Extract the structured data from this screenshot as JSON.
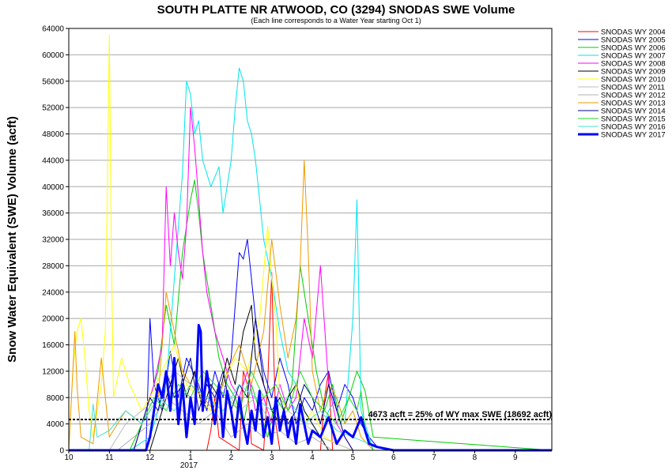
{
  "chart_data": {
    "type": "line",
    "title": "SOUTH PLATTE NR ATWOOD, CO (3294) SNODAS SWE Volume",
    "subtitle": "(Each line corresponds to a Water Year starting Oct 1)",
    "ylabel": "Snow Water Equivalent (SWE) Volume (acft)",
    "xlabel": "",
    "ylim": [
      0,
      64000
    ],
    "xlim": [
      10,
      21.9
    ],
    "yticks": [
      0,
      4000,
      8000,
      12000,
      16000,
      20000,
      24000,
      28000,
      32000,
      36000,
      40000,
      44000,
      48000,
      52000,
      56000,
      60000,
      64000
    ],
    "xticks": [
      {
        "pos": 10,
        "label": "10"
      },
      {
        "pos": 11,
        "label": "11"
      },
      {
        "pos": 12,
        "label": "12"
      },
      {
        "pos": 13,
        "label": "1"
      },
      {
        "pos": 14,
        "label": "2"
      },
      {
        "pos": 15,
        "label": "3"
      },
      {
        "pos": 16,
        "label": "4"
      },
      {
        "pos": 17,
        "label": "5"
      },
      {
        "pos": 18,
        "label": "6"
      },
      {
        "pos": 19,
        "label": "7"
      },
      {
        "pos": 20,
        "label": "8"
      },
      {
        "pos": 21,
        "label": "9"
      }
    ],
    "year_label": "2017",
    "grid": true,
    "legend_position": "right",
    "reference_line": {
      "y": 4673,
      "label": "4673 acft = 25% of WY max SWE (18692 acft)"
    },
    "series": [
      {
        "name": "SNODAS WY 2004",
        "color": "#ff0000",
        "x": [
          10,
          13.4,
          13.5,
          13.6,
          13.7,
          14.2,
          14.3,
          14.4,
          14.5,
          14.8,
          14.9,
          15,
          15.05,
          15.1,
          15.2,
          16.2,
          16.3,
          16.4,
          16.5,
          17,
          21.9
        ],
        "y": [
          0,
          0,
          3000,
          8000,
          2000,
          0,
          12000,
          10000,
          1000,
          0,
          10000,
          27000,
          14000,
          4000,
          0,
          0,
          8000,
          12000,
          0,
          0,
          0
        ]
      },
      {
        "name": "SNODAS WY 2005",
        "color": "#0000ff",
        "x": [
          10,
          11.9,
          12,
          12.1,
          12.3,
          12.5,
          12.7,
          12.9,
          13.2,
          13.4,
          13.6,
          13.8,
          14,
          14.1,
          14.2,
          14.3,
          14.4,
          14.5,
          14.6,
          14.8,
          15,
          15.2,
          15.4,
          15.6,
          15.8,
          16,
          16.2,
          16.4,
          16.6,
          16.8,
          17,
          17.2,
          17.4,
          17.6,
          18,
          21.9
        ],
        "y": [
          0,
          0,
          20000,
          10000,
          6000,
          15000,
          8000,
          14000,
          10000,
          6000,
          12000,
          8000,
          14000,
          22000,
          30000,
          29000,
          32000,
          26000,
          20000,
          12000,
          8000,
          14000,
          10000,
          4000,
          8000,
          6000,
          10000,
          12000,
          6000,
          10000,
          8000,
          4000,
          2000,
          500,
          0,
          0
        ]
      },
      {
        "name": "SNODAS WY 2006",
        "color": "#00cc00",
        "x": [
          10,
          11.5,
          11.8,
          12,
          12.2,
          12.4,
          12.6,
          12.8,
          13,
          13.1,
          13.2,
          13.3,
          13.4,
          13.5,
          13.7,
          13.9,
          14.1,
          14.3,
          14.5,
          14.7,
          14.9,
          15.1,
          15.3,
          15.5,
          15.7,
          15.9,
          16.1,
          16.3,
          16.5,
          16.7,
          16.9,
          17.1,
          17.3,
          17.5,
          21.9
        ],
        "y": [
          0,
          0,
          4000,
          8000,
          12000,
          22000,
          16000,
          30000,
          38000,
          41000,
          36000,
          30000,
          26000,
          22000,
          14000,
          10000,
          8000,
          4000,
          10000,
          6000,
          2000,
          8000,
          6000,
          10000,
          28000,
          20000,
          12000,
          6000,
          10000,
          4000,
          8000,
          12000,
          9000,
          2000,
          0
        ]
      },
      {
        "name": "SNODAS WY 2007",
        "color": "#00e5ee",
        "x": [
          10,
          11.5,
          12,
          12.4,
          12.6,
          12.8,
          12.9,
          13,
          13.1,
          13.2,
          13.3,
          13.5,
          13.7,
          13.8,
          13.9,
          14,
          14.1,
          14.2,
          14.3,
          14.4,
          14.5,
          14.6,
          14.8,
          15,
          15.2,
          15.4,
          15.6,
          15.8,
          16,
          16.2,
          16.4,
          16.6,
          16.8,
          17,
          17.1,
          17.2,
          17.5,
          21.9
        ],
        "y": [
          0,
          0,
          2000,
          10000,
          26000,
          42000,
          56000,
          54000,
          48000,
          50000,
          44000,
          40000,
          43000,
          36000,
          40000,
          44000,
          52000,
          58000,
          56000,
          50000,
          48000,
          44000,
          32000,
          26000,
          18000,
          12000,
          10000,
          6000,
          4000,
          2000,
          6000,
          8000,
          4000,
          20000,
          38000,
          6000,
          0,
          0
        ]
      },
      {
        "name": "SNODAS WY 2008",
        "color": "#ff00ff",
        "x": [
          10,
          11.6,
          11.9,
          12.1,
          12.3,
          12.4,
          12.5,
          12.6,
          12.7,
          12.8,
          12.9,
          13,
          13.1,
          13.2,
          13.3,
          13.4,
          13.6,
          13.8,
          14,
          14.2,
          14.4,
          14.6,
          14.8,
          15,
          15.2,
          15.4,
          15.6,
          15.8,
          16,
          16.2,
          16.4,
          16.6,
          16.8,
          17,
          21.9
        ],
        "y": [
          0,
          0,
          6000,
          10000,
          16000,
          40000,
          28000,
          36000,
          30000,
          26000,
          34000,
          52000,
          46000,
          38000,
          30000,
          24000,
          18000,
          14000,
          10000,
          8000,
          12000,
          6000,
          8000,
          4000,
          10000,
          6000,
          8000,
          20000,
          14000,
          28000,
          10000,
          4000,
          2000,
          0,
          0
        ]
      },
      {
        "name": "SNODAS WY 2009",
        "color": "#000000",
        "x": [
          10,
          12,
          12.3,
          12.5,
          12.7,
          12.9,
          13.1,
          13.3,
          13.5,
          13.7,
          13.9,
          14.1,
          14.3,
          14.5,
          14.6,
          14.8,
          15,
          15.2,
          15.4,
          15.6,
          15.8,
          16,
          16.2,
          16.4,
          17,
          21.9
        ],
        "y": [
          0,
          0,
          6000,
          10000,
          14000,
          8000,
          12000,
          6000,
          10000,
          8000,
          14000,
          10000,
          18000,
          22000,
          14000,
          10000,
          6000,
          4000,
          8000,
          10000,
          6000,
          4000,
          2000,
          0,
          0,
          0
        ]
      },
      {
        "name": "SNODAS WY 2010",
        "color": "#ffff00",
        "x": [
          10,
          10.1,
          10.2,
          10.3,
          10.4,
          10.5,
          10.6,
          10.7,
          10.8,
          10.9,
          10.95,
          11,
          11.05,
          11.1,
          11.3,
          11.5,
          11.8,
          12,
          12.3,
          12.6,
          12.9,
          13.2,
          13.5,
          13.8,
          14.1,
          14.4,
          14.7,
          14.9,
          15,
          15.1,
          15.2,
          15.4,
          15.6,
          15.8,
          16,
          16.3,
          16.6,
          17,
          21.9
        ],
        "y": [
          0,
          12000,
          18000,
          20000,
          14000,
          6000,
          2000,
          6000,
          10000,
          18000,
          40000,
          63000,
          30000,
          8000,
          14000,
          10000,
          6000,
          8000,
          12000,
          16000,
          10000,
          8000,
          6000,
          10000,
          14000,
          12000,
          20000,
          34000,
          26000,
          20000,
          8000,
          6000,
          10000,
          4000,
          6000,
          2000,
          1000,
          0,
          0
        ]
      },
      {
        "name": "SNODAS WY 2011",
        "color": "#bbbbbb",
        "x": [
          10,
          11,
          11.4,
          11.8,
          12.2,
          12.6,
          13,
          13.4,
          13.8,
          14.2,
          14.6,
          15,
          15.4,
          15.8,
          16.2,
          16.6,
          17,
          21.9
        ],
        "y": [
          0,
          0,
          4000,
          6000,
          8000,
          12000,
          10000,
          8000,
          10000,
          6000,
          8000,
          4000,
          6000,
          4000,
          2000,
          1000,
          0,
          0
        ]
      },
      {
        "name": "SNODAS WY 2012",
        "color": "#b0b0b0",
        "x": [
          10,
          11.2,
          11.6,
          12,
          12.4,
          12.8,
          13.2,
          13.6,
          14,
          14.4,
          14.8,
          15.2,
          15.6,
          16,
          16.5,
          21.9
        ],
        "y": [
          0,
          0,
          2000,
          4000,
          8000,
          6000,
          4000,
          6000,
          2000,
          4000,
          2000,
          3000,
          1000,
          2000,
          0,
          0
        ]
      },
      {
        "name": "SNODAS WY 2013",
        "color": "#ee9a00",
        "x": [
          10,
          10.1,
          10.15,
          10.2,
          10.3,
          10.6,
          10.8,
          10.9,
          11,
          11.4,
          11.8,
          12.2,
          12.4,
          12.6,
          12.8,
          13,
          13.3,
          13.6,
          13.9,
          14.2,
          14.5,
          14.8,
          15,
          15.2,
          15.4,
          15.6,
          15.7,
          15.8,
          15.9,
          16,
          16.2,
          16.4,
          16.6,
          16.8,
          17,
          17.2,
          17.5,
          21.9
        ],
        "y": [
          0,
          12000,
          18000,
          10000,
          2000,
          1000,
          14000,
          8000,
          2000,
          6000,
          4000,
          8000,
          24000,
          18000,
          12000,
          10000,
          8000,
          6000,
          12000,
          16000,
          10000,
          18000,
          32000,
          22000,
          14000,
          20000,
          28000,
          44000,
          30000,
          12000,
          6000,
          10000,
          8000,
          4000,
          6000,
          2000,
          0,
          0
        ]
      },
      {
        "name": "SNODAS WY 2014",
        "color": "#00008b",
        "x": [
          10,
          11.6,
          11.8,
          12,
          12.2,
          12.4,
          12.6,
          12.8,
          13,
          13.2,
          13.4,
          13.6,
          13.8,
          14,
          14.2,
          14.4,
          14.6,
          14.8,
          15,
          15.2,
          15.4,
          15.6,
          15.8,
          16,
          16.2,
          16.4,
          16.6,
          16.8,
          17,
          21.9
        ],
        "y": [
          0,
          0,
          4000,
          8000,
          6000,
          12000,
          8000,
          10000,
          14000,
          6000,
          10000,
          8000,
          12000,
          6000,
          10000,
          8000,
          20000,
          10000,
          6000,
          8000,
          4000,
          6000,
          10000,
          8000,
          4000,
          10000,
          6000,
          2000,
          0,
          0
        ]
      },
      {
        "name": "SNODAS WY 2015",
        "color": "#22dd22",
        "x": [
          10,
          11.5,
          11.8,
          12.1,
          12.4,
          12.7,
          13,
          13.3,
          13.6,
          13.9,
          14.2,
          14.5,
          14.8,
          15.1,
          15.4,
          15.7,
          16,
          16.3,
          16.6,
          16.9,
          17.1,
          17.2,
          17.3,
          17.5,
          21.9
        ],
        "y": [
          0,
          0,
          4000,
          8000,
          6000,
          10000,
          8000,
          12000,
          10000,
          8000,
          6000,
          12000,
          8000,
          10000,
          6000,
          12000,
          8000,
          6000,
          4000,
          8000,
          6000,
          9000,
          3000,
          0,
          0
        ]
      },
      {
        "name": "SNODAS WY 2016",
        "color": "#40e0d0",
        "x": [
          10,
          10.5,
          10.6,
          10.7,
          11,
          11.4,
          11.8,
          12.2,
          12.6,
          13,
          13.4,
          13.8,
          14.2,
          14.6,
          15,
          15.4,
          15.8,
          16.2,
          16.6,
          17,
          17.4,
          17.8,
          21.9
        ],
        "y": [
          0,
          0,
          7000,
          2000,
          3000,
          6000,
          4000,
          8000,
          6000,
          10000,
          8000,
          6000,
          10000,
          8000,
          6000,
          8000,
          4000,
          6000,
          3000,
          2000,
          1000,
          0,
          0
        ]
      },
      {
        "name": "SNODAS WY 2017",
        "color": "#0000ff",
        "bold": true,
        "x": [
          10,
          11.9,
          12,
          12.1,
          12.2,
          12.3,
          12.4,
          12.5,
          12.6,
          12.7,
          12.8,
          12.9,
          13,
          13.1,
          13.2,
          13.25,
          13.3,
          13.4,
          13.5,
          13.6,
          13.7,
          13.8,
          13.9,
          14,
          14.1,
          14.2,
          14.3,
          14.4,
          14.5,
          14.6,
          14.7,
          14.8,
          14.9,
          15,
          15.1,
          15.2,
          15.3,
          15.4,
          15.5,
          15.6,
          15.7,
          15.8,
          15.9,
          16,
          16.2,
          16.4,
          16.6,
          16.8,
          17,
          17.2,
          17.4,
          17.6,
          18,
          21.9
        ],
        "y": [
          0,
          0,
          2000,
          6000,
          10000,
          8000,
          12000,
          6000,
          14000,
          4000,
          10000,
          2000,
          8000,
          4000,
          19000,
          18000,
          6000,
          12000,
          8000,
          4000,
          10000,
          2000,
          9000,
          6000,
          2000,
          8000,
          4000,
          1000,
          6000,
          3000,
          9000,
          2000,
          5000,
          1000,
          8000,
          3000,
          6000,
          2000,
          5000,
          1000,
          7000,
          4000,
          1000,
          3000,
          2000,
          5000,
          1000,
          3000,
          2000,
          5000,
          1000,
          500,
          0,
          0
        ]
      }
    ]
  }
}
